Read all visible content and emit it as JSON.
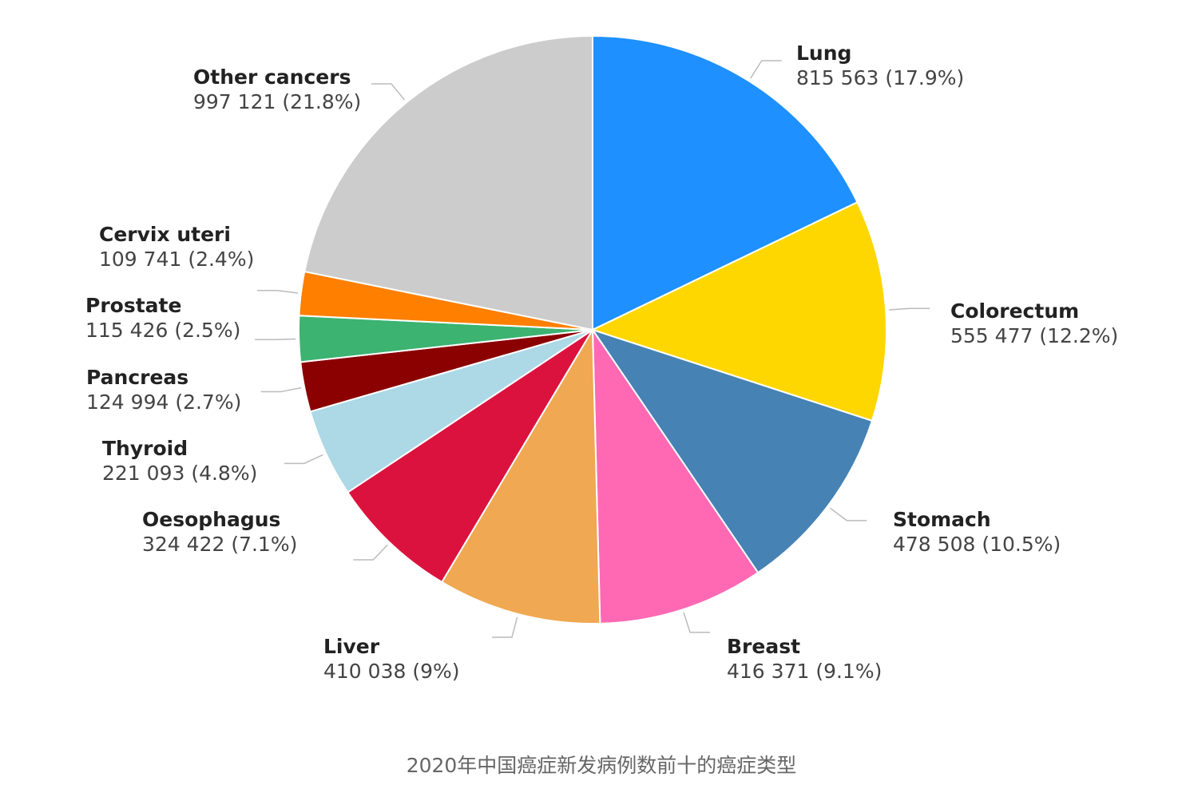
{
  "chart_data": {
    "type": "pie",
    "caption": "2020年中国癌症新发病例数前十的癌症类型",
    "categories": [
      "Lung",
      "Colorectum",
      "Stomach",
      "Breast",
      "Liver",
      "Oesophagus",
      "Thyroid",
      "Pancreas",
      "Prostate",
      "Cervix uteri",
      "Other cancers"
    ],
    "values": [
      815563,
      555477,
      478508,
      416371,
      410038,
      324422,
      221093,
      124994,
      115426,
      109741,
      997121
    ],
    "value_labels": [
      "815 563 (17.9%)",
      "555 477 (12.2%)",
      "478 508 (10.5%)",
      "416 371 (9.1%)",
      "410 038 (9%)",
      "324 422 (7.1%)",
      "221 093 (4.8%)",
      "124 994 (2.7%)",
      "115 426 (2.5%)",
      "109 741 (2.4%)",
      "997 121 (21.8%)"
    ],
    "colors": [
      "#1e90ff",
      "#ffd700",
      "#4682b4",
      "#ff69b4",
      "#f0a852",
      "#dc123e",
      "#add8e6",
      "#8b0000",
      "#3cb371",
      "#ff7f00",
      "#cccccc"
    ]
  }
}
